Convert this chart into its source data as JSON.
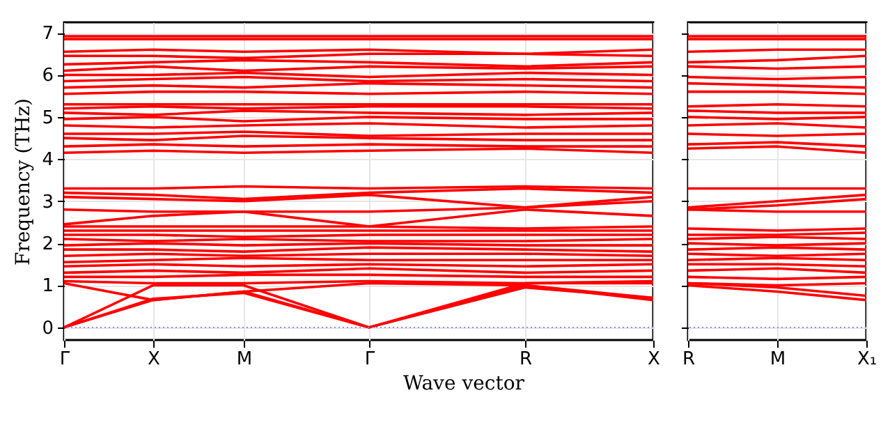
{
  "chart_data": [
    {
      "type": "line",
      "xlabel": "Wave vector",
      "ylabel": "Frequency (THz)",
      "categories": [
        "Γ",
        "X",
        "M",
        "Γ",
        "R",
        "X"
      ],
      "ylim": [
        -0.3,
        7.25
      ],
      "yticks": [
        0,
        1,
        2,
        3,
        4,
        5,
        6,
        7
      ],
      "grid": true,
      "ref_lines": [
        {
          "axis": "y",
          "value": 0,
          "color": "#8080ff",
          "line_style": "dotted"
        }
      ],
      "series": [
        {
          "color": "#ff0000",
          "values": [
            0,
            0.65,
            0.85,
            0,
            1.0,
            0.65
          ]
        },
        {
          "color": "#ff0000",
          "values": [
            0,
            0.68,
            0.82,
            0,
            0.95,
            0.7
          ]
        },
        {
          "color": "#ff0000",
          "values": [
            0,
            1.0,
            1.0,
            0,
            1.05,
            1.05
          ]
        },
        {
          "color": "#ff0000",
          "values": [
            1.05,
            0.65,
            0.85,
            1.05,
            1.0,
            0.7
          ]
        },
        {
          "color": "#ff0000",
          "values": [
            1.1,
            1.05,
            1.05,
            1.1,
            1.05,
            1.1
          ]
        },
        {
          "color": "#ff0000",
          "values": [
            1.2,
            1.2,
            1.25,
            1.25,
            1.2,
            1.2
          ]
        },
        {
          "color": "#ff0000",
          "values": [
            1.3,
            1.35,
            1.3,
            1.4,
            1.3,
            1.35
          ]
        },
        {
          "color": "#ff0000",
          "values": [
            1.45,
            1.5,
            1.45,
            1.5,
            1.45,
            1.5
          ]
        },
        {
          "color": "#ff0000",
          "values": [
            1.55,
            1.6,
            1.65,
            1.6,
            1.6,
            1.6
          ]
        },
        {
          "color": "#ff0000",
          "values": [
            1.7,
            1.75,
            1.7,
            1.75,
            1.75,
            1.7
          ]
        },
        {
          "color": "#ff0000",
          "values": [
            1.85,
            1.85,
            1.8,
            1.9,
            1.85,
            1.8
          ]
        },
        {
          "color": "#ff0000",
          "values": [
            1.95,
            2.0,
            1.95,
            2.0,
            1.95,
            1.95
          ]
        },
        {
          "color": "#ff0000",
          "values": [
            2.1,
            2.05,
            2.1,
            2.05,
            2.05,
            2.1
          ]
        },
        {
          "color": "#ff0000",
          "values": [
            2.2,
            2.2,
            2.15,
            2.2,
            2.2,
            2.2
          ]
        },
        {
          "color": "#ff0000",
          "values": [
            2.3,
            2.3,
            2.3,
            2.3,
            2.3,
            2.3
          ]
        },
        {
          "color": "#ff0000",
          "values": [
            2.4,
            2.4,
            2.4,
            2.4,
            2.35,
            2.4
          ]
        },
        {
          "color": "#ff0000",
          "values": [
            2.45,
            2.65,
            2.75,
            2.4,
            2.8,
            2.65
          ]
        },
        {
          "color": "#ff0000",
          "values": [
            2.8,
            2.75,
            2.75,
            2.75,
            2.85,
            3.0
          ]
        },
        {
          "color": "#ff0000",
          "values": [
            3.1,
            3.05,
            3.0,
            3.15,
            2.85,
            3.1
          ]
        },
        {
          "color": "#ff0000",
          "values": [
            3.2,
            3.15,
            3.05,
            3.2,
            3.3,
            3.2
          ]
        },
        {
          "color": "#ff0000",
          "values": [
            3.3,
            3.3,
            3.35,
            3.3,
            3.35,
            3.3
          ]
        },
        {
          "color": "#ff0000",
          "values": [
            4.15,
            4.2,
            4.15,
            4.2,
            4.25,
            4.15
          ]
        },
        {
          "color": "#ff0000",
          "values": [
            4.3,
            4.35,
            4.3,
            4.35,
            4.3,
            4.3
          ]
        },
        {
          "color": "#ff0000",
          "values": [
            4.5,
            4.45,
            4.55,
            4.5,
            4.45,
            4.45
          ]
        },
        {
          "color": "#ff0000",
          "values": [
            4.6,
            4.6,
            4.65,
            4.55,
            4.6,
            4.6
          ]
        },
        {
          "color": "#ff0000",
          "values": [
            4.8,
            4.75,
            4.8,
            4.85,
            4.75,
            4.8
          ]
        },
        {
          "color": "#ff0000",
          "values": [
            4.95,
            5.0,
            4.9,
            5.0,
            4.95,
            4.95
          ]
        },
        {
          "color": "#ff0000",
          "values": [
            5.1,
            5.05,
            5.15,
            5.1,
            5.05,
            5.1
          ]
        },
        {
          "color": "#ff0000",
          "values": [
            5.2,
            5.25,
            5.2,
            5.25,
            5.25,
            5.2
          ]
        },
        {
          "color": "#ff0000",
          "values": [
            5.3,
            5.3,
            5.3,
            5.3,
            5.3,
            5.3
          ]
        },
        {
          "color": "#ff0000",
          "values": [
            5.55,
            5.6,
            5.6,
            5.55,
            5.6,
            5.55
          ]
        },
        {
          "color": "#ff0000",
          "values": [
            5.7,
            5.75,
            5.7,
            5.8,
            5.75,
            5.7
          ]
        },
        {
          "color": "#ff0000",
          "values": [
            5.85,
            5.9,
            5.95,
            5.85,
            5.9,
            5.85
          ]
        },
        {
          "color": "#ff0000",
          "values": [
            6.0,
            6.0,
            6.05,
            5.95,
            6.05,
            6.0
          ]
        },
        {
          "color": "#ff0000",
          "values": [
            6.1,
            6.2,
            6.1,
            6.2,
            6.15,
            6.2
          ]
        },
        {
          "color": "#ff0000",
          "values": [
            6.25,
            6.3,
            6.35,
            6.3,
            6.2,
            6.3
          ]
        },
        {
          "color": "#ff0000",
          "values": [
            6.45,
            6.45,
            6.4,
            6.5,
            6.5,
            6.45
          ]
        },
        {
          "color": "#ff0000",
          "values": [
            6.55,
            6.6,
            6.55,
            6.6,
            6.5,
            6.6
          ]
        },
        {
          "color": "#ff0000",
          "values": [
            6.85,
            6.85,
            6.85,
            6.85,
            6.85,
            6.85
          ]
        },
        {
          "color": "#ff0000",
          "values": [
            6.92,
            6.92,
            6.92,
            6.92,
            6.92,
            6.92
          ]
        }
      ]
    },
    {
      "type": "line",
      "categories": [
        "R",
        "M",
        "X₁"
      ],
      "ylim": [
        -0.3,
        7.25
      ],
      "yticks": [
        0,
        1,
        2,
        3,
        4,
        5,
        6,
        7
      ],
      "tick_labels": "x",
      "grid": true,
      "ref_lines": [
        {
          "axis": "y",
          "value": 0,
          "color": "#8080ff",
          "line_style": "dotted"
        }
      ],
      "series": [
        {
          "color": "#ff0000",
          "values": [
            1.0,
            0.85,
            0.65
          ]
        },
        {
          "color": "#ff0000",
          "values": [
            1.05,
            0.95,
            0.75
          ]
        },
        {
          "color": "#ff0000",
          "values": [
            1.05,
            1.0,
            1.05
          ]
        },
        {
          "color": "#ff0000",
          "values": [
            1.2,
            1.15,
            1.2
          ]
        },
        {
          "color": "#ff0000",
          "values": [
            1.35,
            1.4,
            1.3
          ]
        },
        {
          "color": "#ff0000",
          "values": [
            1.5,
            1.5,
            1.45
          ]
        },
        {
          "color": "#ff0000",
          "values": [
            1.6,
            1.65,
            1.6
          ]
        },
        {
          "color": "#ff0000",
          "values": [
            1.75,
            1.7,
            1.75
          ]
        },
        {
          "color": "#ff0000",
          "values": [
            1.85,
            1.9,
            1.85
          ]
        },
        {
          "color": "#ff0000",
          "values": [
            2.0,
            1.95,
            2.0
          ]
        },
        {
          "color": "#ff0000",
          "values": [
            2.1,
            2.15,
            2.1
          ]
        },
        {
          "color": "#ff0000",
          "values": [
            2.2,
            2.2,
            2.25
          ]
        },
        {
          "color": "#ff0000",
          "values": [
            2.35,
            2.3,
            2.35
          ]
        },
        {
          "color": "#ff0000",
          "values": [
            2.8,
            2.9,
            3.05
          ]
        },
        {
          "color": "#ff0000",
          "values": [
            2.85,
            3.0,
            3.15
          ]
        },
        {
          "color": "#ff0000",
          "values": [
            2.8,
            2.75,
            2.75
          ]
        },
        {
          "color": "#ff0000",
          "values": [
            3.3,
            3.3,
            3.3
          ]
        },
        {
          "color": "#ff0000",
          "values": [
            4.25,
            4.3,
            4.15
          ]
        },
        {
          "color": "#ff0000",
          "values": [
            4.35,
            4.4,
            4.3
          ]
        },
        {
          "color": "#ff0000",
          "values": [
            4.6,
            4.55,
            4.6
          ]
        },
        {
          "color": "#ff0000",
          "values": [
            4.8,
            4.85,
            4.75
          ]
        },
        {
          "color": "#ff0000",
          "values": [
            5.0,
            4.95,
            5.0
          ]
        },
        {
          "color": "#ff0000",
          "values": [
            5.15,
            5.1,
            5.1
          ]
        },
        {
          "color": "#ff0000",
          "values": [
            5.25,
            5.3,
            5.25
          ]
        },
        {
          "color": "#ff0000",
          "values": [
            5.6,
            5.6,
            5.55
          ]
        },
        {
          "color": "#ff0000",
          "values": [
            5.8,
            5.75,
            5.7
          ]
        },
        {
          "color": "#ff0000",
          "values": [
            5.95,
            5.9,
            5.95
          ]
        },
        {
          "color": "#ff0000",
          "values": [
            6.2,
            6.15,
            6.2
          ]
        },
        {
          "color": "#ff0000",
          "values": [
            6.3,
            6.35,
            6.45
          ]
        },
        {
          "color": "#ff0000",
          "values": [
            6.55,
            6.6,
            6.6
          ]
        },
        {
          "color": "#ff0000",
          "values": [
            6.85,
            6.85,
            6.85
          ]
        },
        {
          "color": "#ff0000",
          "values": [
            6.92,
            6.92,
            6.92
          ]
        }
      ]
    }
  ]
}
